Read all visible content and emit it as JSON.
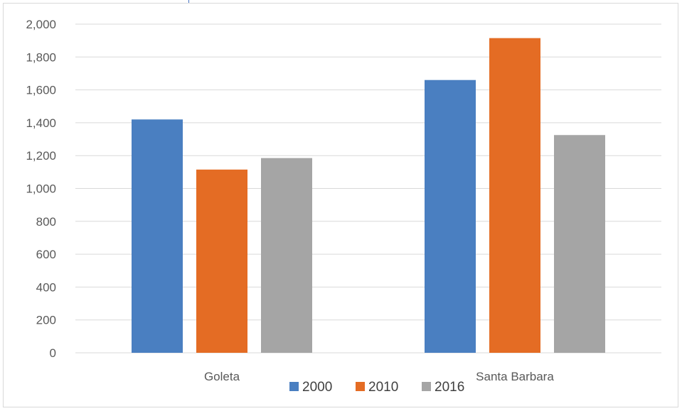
{
  "chart_data": {
    "type": "bar",
    "title": "",
    "xlabel": "",
    "ylabel": "",
    "categories": [
      "Goleta",
      "Santa Barbara"
    ],
    "series": [
      {
        "name": "2000",
        "color": "#4a7fc1",
        "values": [
          1420,
          1660
        ]
      },
      {
        "name": "2010",
        "color": "#e46c24",
        "values": [
          1115,
          1915
        ]
      },
      {
        "name": "2016",
        "color": "#a5a5a5",
        "values": [
          1185,
          1325
        ]
      }
    ],
    "ylim": [
      0,
      2000
    ],
    "yticks": [
      0,
      200,
      400,
      600,
      800,
      1000,
      1200,
      1400,
      1600,
      1800,
      2000
    ],
    "ytick_labels": [
      "0",
      "200",
      "400",
      "600",
      "800",
      "1,000",
      "1,200",
      "1,400",
      "1,600",
      "1,800",
      "2,000"
    ],
    "grid": true,
    "legend_position": "bottom"
  }
}
